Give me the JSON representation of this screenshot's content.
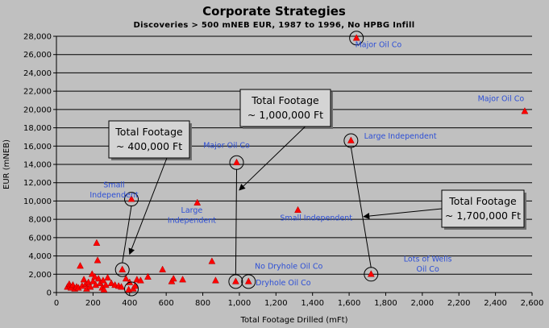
{
  "chart_data": {
    "type": "scatter",
    "title": "Corporate Strategies",
    "subtitle": "Discoveries  > 500 mNEB EUR, 1987 to 1996, No HPBG Infill",
    "xlabel": "Total Footage Drilled (mFt)",
    "ylabel": "EUR (mNEB)",
    "xlim": [
      0,
      2600
    ],
    "ylim": [
      0,
      28000
    ],
    "x_ticks": [
      "0",
      "200",
      "400",
      "600",
      "800",
      "1,000",
      "1,200",
      "1,400",
      "1,600",
      "1,800",
      "2,000",
      "2,200",
      "2,400",
      "2,600"
    ],
    "y_ticks": [
      "0",
      "2,000",
      "4,000",
      "6,000",
      "8,000",
      "10,000",
      "12,000",
      "14,000",
      "16,000",
      "18,000",
      "20,000",
      "22,000",
      "24,000",
      "26,000",
      "28,000"
    ],
    "grid": "horizontal",
    "marker_color": "#ff0000",
    "points": [
      {
        "x": 60,
        "y": 600
      },
      {
        "x": 70,
        "y": 900
      },
      {
        "x": 75,
        "y": 700
      },
      {
        "x": 80,
        "y": 500
      },
      {
        "x": 90,
        "y": 800
      },
      {
        "x": 100,
        "y": 400
      },
      {
        "x": 110,
        "y": 600
      },
      {
        "x": 120,
        "y": 500
      },
      {
        "x": 130,
        "y": 2900
      },
      {
        "x": 140,
        "y": 700
      },
      {
        "x": 150,
        "y": 1400
      },
      {
        "x": 160,
        "y": 900
      },
      {
        "x": 165,
        "y": 400
      },
      {
        "x": 175,
        "y": 1100
      },
      {
        "x": 185,
        "y": 600
      },
      {
        "x": 195,
        "y": 2000
      },
      {
        "x": 200,
        "y": 1200
      },
      {
        "x": 210,
        "y": 1700
      },
      {
        "x": 215,
        "y": 800
      },
      {
        "x": 220,
        "y": 5400
      },
      {
        "x": 225,
        "y": 3500
      },
      {
        "x": 230,
        "y": 1500
      },
      {
        "x": 240,
        "y": 1000
      },
      {
        "x": 250,
        "y": 500
      },
      {
        "x": 255,
        "y": 1300
      },
      {
        "x": 260,
        "y": 300
      },
      {
        "x": 270,
        "y": 800
      },
      {
        "x": 280,
        "y": 1600
      },
      {
        "x": 300,
        "y": 1000
      },
      {
        "x": 320,
        "y": 800
      },
      {
        "x": 340,
        "y": 700
      },
      {
        "x": 355,
        "y": 600
      },
      {
        "x": 360,
        "y": 2500
      },
      {
        "x": 380,
        "y": 1500
      },
      {
        "x": 395,
        "y": 300
      },
      {
        "x": 400,
        "y": 1100
      },
      {
        "x": 410,
        "y": 10200
      },
      {
        "x": 420,
        "y": 400
      },
      {
        "x": 430,
        "y": 700
      },
      {
        "x": 440,
        "y": 1400
      },
      {
        "x": 460,
        "y": 1300
      },
      {
        "x": 500,
        "y": 1700
      },
      {
        "x": 580,
        "y": 2500
      },
      {
        "x": 630,
        "y": 1200
      },
      {
        "x": 640,
        "y": 1500
      },
      {
        "x": 690,
        "y": 1400
      },
      {
        "x": 770,
        "y": 9800
      },
      {
        "x": 850,
        "y": 3400
      },
      {
        "x": 870,
        "y": 1300
      },
      {
        "x": 980,
        "y": 1200
      },
      {
        "x": 985,
        "y": 14200
      },
      {
        "x": 1050,
        "y": 1200
      },
      {
        "x": 1320,
        "y": 9000
      },
      {
        "x": 1610,
        "y": 16600
      },
      {
        "x": 1640,
        "y": 27800
      },
      {
        "x": 1720,
        "y": 2000
      },
      {
        "x": 2560,
        "y": 19800
      }
    ],
    "circled_points": [
      {
        "x": 410,
        "y": 10200
      },
      {
        "x": 360,
        "y": 2500
      },
      {
        "x": 410,
        "y": 400
      },
      {
        "x": 985,
        "y": 14200
      },
      {
        "x": 980,
        "y": 1200
      },
      {
        "x": 1050,
        "y": 1200
      },
      {
        "x": 1610,
        "y": 16600
      },
      {
        "x": 1640,
        "y": 27800
      },
      {
        "x": 1720,
        "y": 2000
      }
    ],
    "annotations": [
      {
        "text": "Small",
        "x": 315,
        "y": 11500
      },
      {
        "text": "Independent",
        "x": 315,
        "y": 10400
      },
      {
        "text": "Large",
        "x": 740,
        "y": 8700
      },
      {
        "text": "Independent",
        "x": 740,
        "y": 7600
      },
      {
        "text": "Major Oil Co",
        "x": 930,
        "y": 15800
      },
      {
        "text": "No Dryhole Oil Co",
        "x": 1270,
        "y": 2600
      },
      {
        "text": "Dryhole Oil Co",
        "x": 1240,
        "y": 800
      },
      {
        "text": "Small Independent",
        "x": 1420,
        "y": 7900
      },
      {
        "text": "Major Oil Co",
        "x": 1760,
        "y": 26800
      },
      {
        "text": "Large Independent",
        "x": 1880,
        "y": 16800
      },
      {
        "text": "Major Oil Co",
        "x": 2430,
        "y": 20900
      },
      {
        "text": "Lots of Wells",
        "x": 2030,
        "y": 3400
      },
      {
        "text": "Oil Co",
        "x": 2030,
        "y": 2300
      }
    ],
    "callouts": [
      {
        "line1": "Total Footage",
        "line2": "~ 400,000 Ft",
        "tip": {
          "x": 400,
          "y": 4200
        }
      },
      {
        "line1": "Total Footage",
        "line2": "~ 1,000,000 Ft",
        "tip": {
          "x": 1000,
          "y": 11200
        }
      },
      {
        "line1": "Total Footage",
        "line2": "~ 1,700,000 Ft",
        "tip": {
          "x": 1680,
          "y": 8300
        }
      }
    ]
  }
}
